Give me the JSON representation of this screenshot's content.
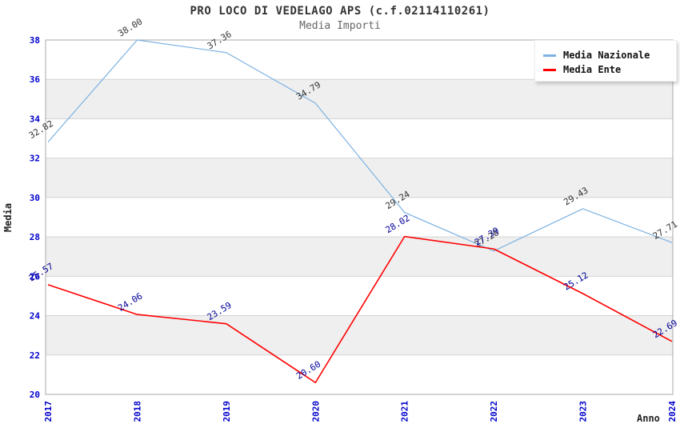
{
  "page": {
    "title": "PRO LOCO DI VEDELAGO APS (c.f.02114110261)",
    "subtitle": "Media Importi"
  },
  "axes": {
    "y_title": "Media",
    "x_title": "Anno"
  },
  "chart_data": {
    "type": "line",
    "title": "PRO LOCO DI VEDELAGO APS (c.f.02114110261)",
    "subtitle": "Media Importi",
    "xlabel": "Anno",
    "ylabel": "Media",
    "x": [
      2017,
      2018,
      2019,
      2020,
      2021,
      2022,
      2023,
      2024
    ],
    "series": [
      {
        "name": "Media Nazionale",
        "color": "#7CB2E2",
        "label_color": "#333333",
        "values": [
          32.82,
          38.0,
          37.36,
          34.79,
          29.24,
          27.28,
          29.43,
          27.71
        ],
        "labels": [
          "32.82",
          "38.00",
          "37.36",
          "34.79",
          "29.24",
          "27.28",
          "29.43",
          "27.71"
        ]
      },
      {
        "name": "Media Ente",
        "color": "#FF0000",
        "label_color": "#000099",
        "values": [
          25.57,
          24.06,
          23.59,
          20.6,
          28.02,
          27.39,
          25.12,
          22.69
        ],
        "labels": [
          "25.57",
          "24.06",
          "23.59",
          "20.60",
          "28.02",
          "27.39",
          "25.12",
          "22.69"
        ]
      }
    ],
    "ylim": [
      20,
      38
    ],
    "yticks": [
      20,
      22,
      24,
      26,
      28,
      30,
      32,
      34,
      36,
      38
    ],
    "tick_color": "#0000CC",
    "band_colors": [
      "#FFFFFF",
      "#EFEFEF"
    ],
    "grid": "horizontal-bands",
    "legend_position": "top-right"
  }
}
